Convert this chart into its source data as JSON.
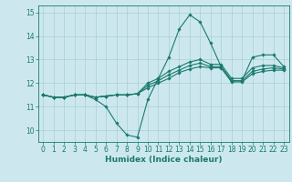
{
  "xlabel": "Humidex (Indice chaleur)",
  "xlim": [
    -0.5,
    23.5
  ],
  "ylim": [
    9.5,
    15.3
  ],
  "yticks": [
    10,
    11,
    12,
    13,
    14,
    15
  ],
  "xticks": [
    0,
    1,
    2,
    3,
    4,
    5,
    6,
    7,
    8,
    9,
    10,
    11,
    12,
    13,
    14,
    15,
    16,
    17,
    18,
    19,
    20,
    21,
    22,
    23
  ],
  "bg_color": "#cce8ee",
  "grid_color": "#aacdd6",
  "line_color": "#1a7a6e",
  "lines": [
    {
      "x": [
        0,
        1,
        2,
        3,
        4,
        5,
        6,
        7,
        8,
        9,
        10,
        11,
        12,
        13,
        14,
        15,
        16,
        17,
        18,
        19,
        20,
        21,
        22,
        23
      ],
      "y": [
        11.5,
        11.4,
        11.4,
        11.5,
        11.5,
        11.3,
        11.0,
        10.3,
        9.8,
        9.7,
        11.3,
        12.2,
        13.1,
        14.3,
        14.9,
        14.6,
        13.7,
        12.7,
        12.1,
        12.1,
        13.1,
        13.2,
        13.2,
        12.7
      ]
    },
    {
      "x": [
        0,
        1,
        2,
        3,
        4,
        5,
        6,
        7,
        8,
        9,
        10,
        11,
        12,
        13,
        14,
        15,
        16,
        17,
        18,
        19,
        20,
        21,
        22,
        23
      ],
      "y": [
        11.5,
        11.4,
        11.4,
        11.5,
        11.5,
        11.4,
        11.45,
        11.5,
        11.5,
        11.55,
        11.8,
        12.0,
        12.2,
        12.45,
        12.6,
        12.7,
        12.65,
        12.65,
        12.05,
        12.05,
        12.4,
        12.5,
        12.55,
        12.55
      ]
    },
    {
      "x": [
        0,
        1,
        2,
        3,
        4,
        5,
        6,
        7,
        8,
        9,
        10,
        11,
        12,
        13,
        14,
        15,
        16,
        17,
        18,
        19,
        20,
        21,
        22,
        23
      ],
      "y": [
        11.5,
        11.4,
        11.4,
        11.5,
        11.5,
        11.4,
        11.45,
        11.5,
        11.5,
        11.55,
        11.9,
        12.1,
        12.35,
        12.55,
        12.75,
        12.85,
        12.7,
        12.7,
        12.1,
        12.1,
        12.5,
        12.6,
        12.65,
        12.6
      ]
    },
    {
      "x": [
        0,
        1,
        2,
        3,
        4,
        5,
        6,
        7,
        8,
        9,
        10,
        11,
        12,
        13,
        14,
        15,
        16,
        17,
        18,
        19,
        20,
        21,
        22,
        23
      ],
      "y": [
        11.5,
        11.4,
        11.4,
        11.5,
        11.5,
        11.4,
        11.45,
        11.5,
        11.5,
        11.55,
        12.0,
        12.2,
        12.5,
        12.7,
        12.9,
        13.0,
        12.8,
        12.8,
        12.2,
        12.2,
        12.65,
        12.75,
        12.75,
        12.65
      ]
    }
  ]
}
